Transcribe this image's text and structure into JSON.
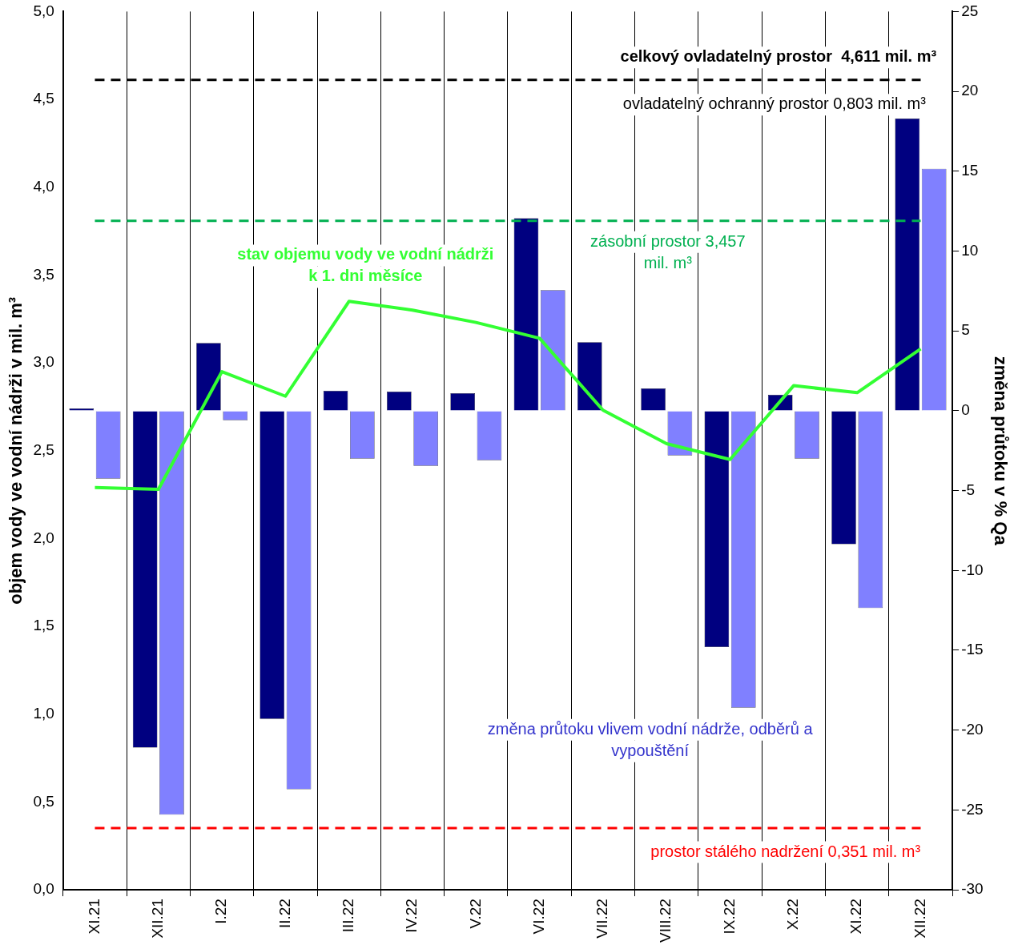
{
  "chart_data": {
    "type": "bar",
    "categories": [
      "XI.21",
      "XII.21",
      "I.22",
      "II.22",
      "III.22",
      "IV.22",
      "V.22",
      "VI.22",
      "VII.22",
      "VIII.22",
      "IX.22",
      "X.22",
      "XI.22",
      "XII.22"
    ],
    "ylabel": "objem vody ve vodní nádrži v mil. m³",
    "y2label": "změna průtoku v % Qa",
    "ylim": [
      0,
      5
    ],
    "yticks": [
      {
        "value": 0,
        "label": "0,0"
      },
      {
        "value": 0.5,
        "label": "0,5"
      },
      {
        "value": 1,
        "label": "1,0"
      },
      {
        "value": 1.5,
        "label": "1,5"
      },
      {
        "value": 2,
        "label": "2,0"
      },
      {
        "value": 2.5,
        "label": "2,5"
      },
      {
        "value": 3,
        "label": "3,0"
      },
      {
        "value": 3.5,
        "label": "3,5"
      },
      {
        "value": 4,
        "label": "4,0"
      },
      {
        "value": 4.5,
        "label": "4,5"
      },
      {
        "value": 5,
        "label": "5,0"
      }
    ],
    "y2lim": [
      -30,
      25
    ],
    "y2ticks": [
      -30,
      -25,
      -20,
      -15,
      -10,
      -5,
      0,
      5,
      10,
      15,
      20,
      25
    ],
    "grid": "x",
    "series": [
      {
        "axis": "y2",
        "color": "#000080",
        "values": [
          0.15,
          -21.1,
          4.25,
          -19.3,
          1.25,
          1.2,
          1.1,
          12.05,
          4.3,
          1.4,
          -14.8,
          1.0,
          -8.35,
          18.3
        ]
      },
      {
        "axis": "y2",
        "color": "#8080ff",
        "values": [
          -4.25,
          -25.3,
          -0.6,
          -23.7,
          -3.0,
          -3.45,
          -3.1,
          7.55,
          null,
          -2.8,
          -18.6,
          -3.0,
          -12.35,
          15.15
        ]
      },
      {
        "type": "line",
        "axis": "y",
        "name": "stav objemu vody ve vodní nádrži k 1. dni měsíce",
        "color": "#33ff33",
        "values": [
          2.29,
          2.28,
          2.95,
          2.81,
          3.35,
          3.3,
          3.23,
          3.14,
          2.73,
          2.54,
          2.45,
          2.87,
          2.83,
          3.08
        ]
      }
    ],
    "ref_lines": [
      {
        "axis": "y",
        "value": 4.611,
        "label": "celkový ovladatelný prostor  4,611 mil. m³",
        "color": "#000000",
        "line_style": "dashed"
      },
      {
        "axis": "y",
        "value": 3.808,
        "label": "zásobní prostor 3,457 mil. m³",
        "color": "#00b050",
        "line_style": "dashed"
      },
      {
        "axis": "y",
        "value": 0.351,
        "label": "prostor stálého nadržení 0,351 mil. m³",
        "color": "#ff0000",
        "line_style": "dashed"
      }
    ],
    "annotations": [
      "ovladatelný ochranný prostor 0,803 mil. m³",
      "změna průtoku vlivem vodní nádrže, odběrů a vypouštění"
    ]
  }
}
